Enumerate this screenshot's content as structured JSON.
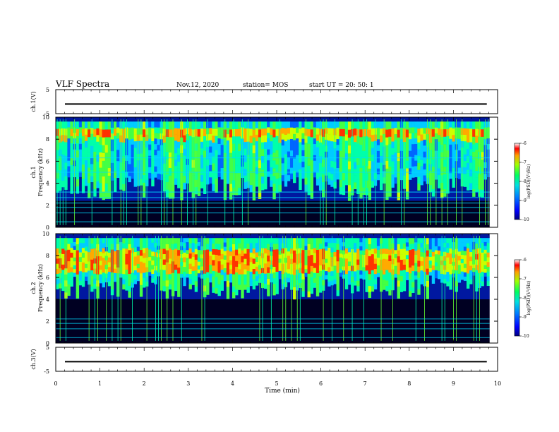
{
  "header": {
    "title": "VLF Spectra",
    "date": "Nov.12, 2020",
    "station": "station= MOS",
    "start_ut": "start  UT =   20: 50: 1"
  },
  "chart_data": [
    {
      "type": "line",
      "name": "ch1-waveform",
      "ylabel": "ch.1(V)",
      "ylim": [
        -5,
        5
      ],
      "yticks": [
        "5",
        "-5"
      ],
      "x": [
        0,
        9.82
      ],
      "values": [
        -1.0,
        -1.0
      ]
    },
    {
      "type": "heatmap",
      "name": "ch1-spectrogram",
      "ylabel": "ch.1\nFrequency (kHz)",
      "ylim": [
        0,
        10
      ],
      "yticks": [
        "0",
        "2",
        "4",
        "6",
        "8",
        "10"
      ],
      "xlim": [
        0,
        9.82
      ],
      "intense_band_khz": [
        8.0,
        9.2
      ],
      "broadband_floor_khz": 2.4,
      "horizontal_lines_khz": [
        0.5,
        1.3,
        1.8,
        2.2,
        2.7,
        3.2,
        5.0,
        6.3
      ],
      "colorbar": {
        "label": "log(PSD)(V²/Hz)",
        "range": [
          -10,
          -6
        ],
        "ticks": [
          "-6",
          "-7",
          "-8",
          "-9",
          "-10"
        ]
      }
    },
    {
      "type": "heatmap",
      "name": "ch2-spectrogram",
      "ylabel": "ch.2\nFrequency (kHz)",
      "ylim": [
        0,
        10
      ],
      "yticks": [
        "0",
        "2",
        "4",
        "6",
        "8",
        "10"
      ],
      "xlim": [
        0,
        9.82
      ],
      "intense_band_khz": [
        6.5,
        8.5
      ],
      "broadband_floor_khz": 4.0,
      "horizontal_lines_khz": [
        0.5,
        1.3,
        1.8,
        2.2
      ],
      "colorbar": {
        "label": "log(PSD)(V²/Hz)",
        "range": [
          -10,
          -6
        ],
        "ticks": [
          "-6",
          "-7",
          "-8",
          "-9",
          "-10"
        ]
      }
    },
    {
      "type": "line",
      "name": "ch3-waveform",
      "ylabel": "ch.3(V)",
      "ylim": [
        -5,
        5
      ],
      "yticks": [
        "5",
        "-5"
      ],
      "x": [
        0,
        9.82
      ],
      "values": [
        -1.0,
        -1.0
      ]
    }
  ],
  "time_axis": {
    "label": "Time (min)",
    "xlim": [
      0,
      10
    ],
    "ticks": [
      "0",
      "1",
      "2",
      "3",
      "4",
      "5",
      "6",
      "7",
      "8",
      "9",
      "10"
    ]
  },
  "colors": {
    "background": "#000033",
    "low": "#0000aa",
    "mid": "#00ff88",
    "high": "#ff0000"
  }
}
